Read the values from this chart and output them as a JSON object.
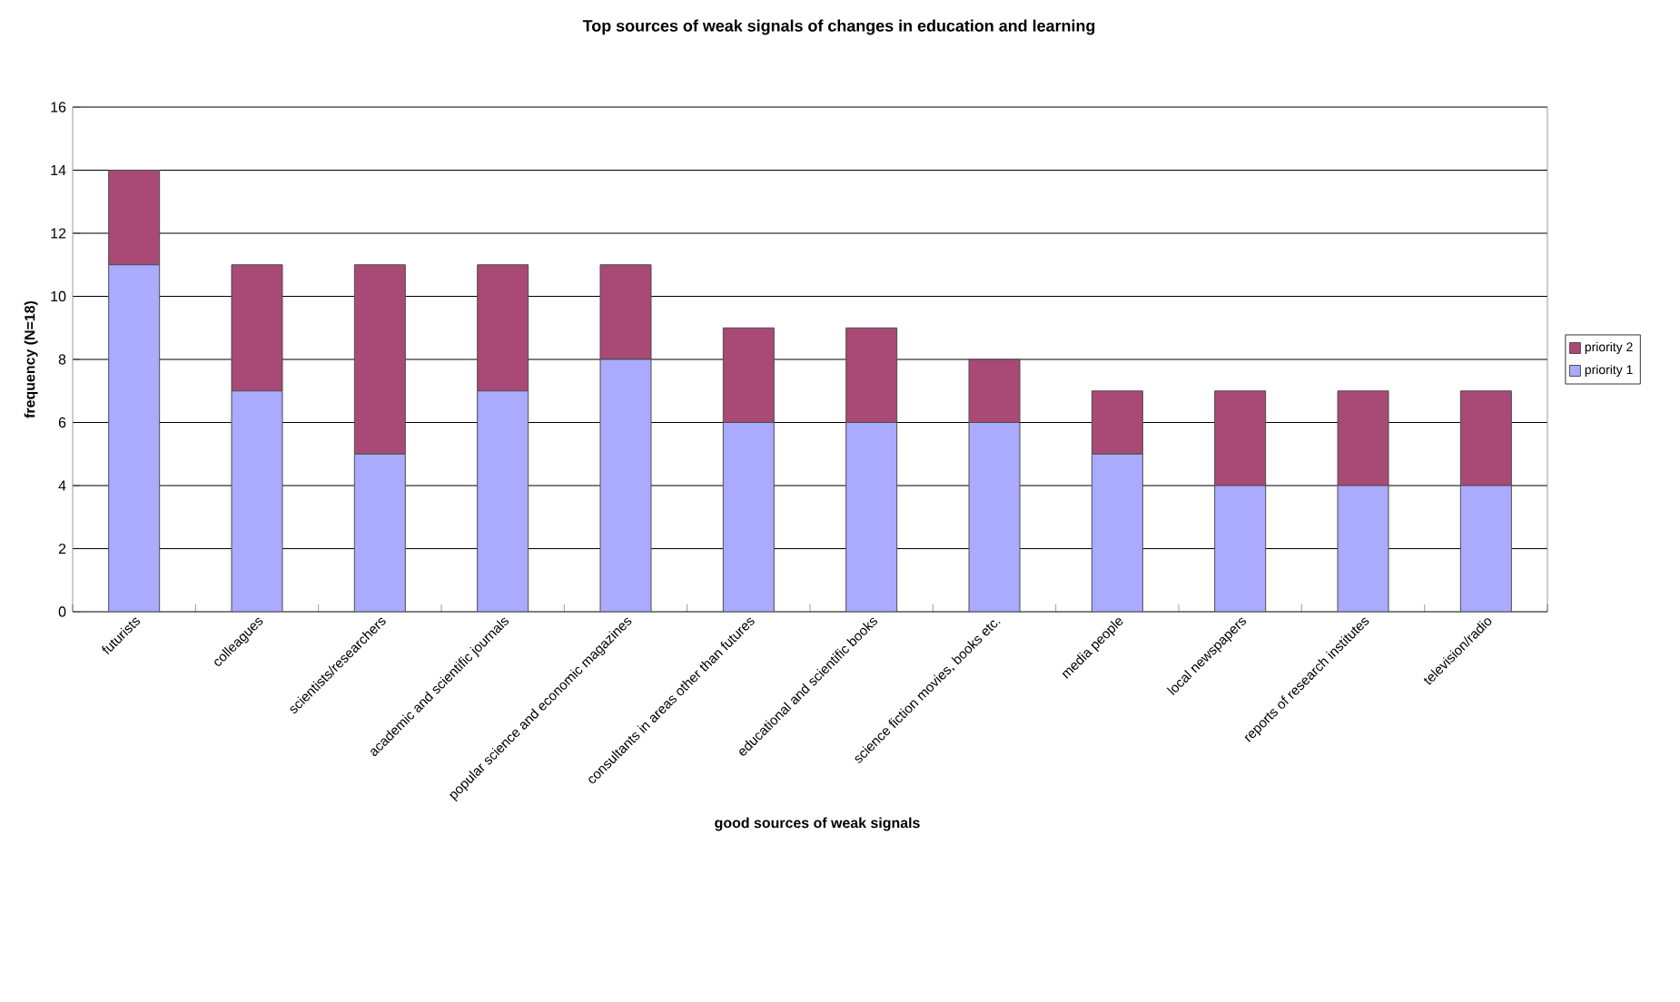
{
  "chart_data": {
    "type": "bar",
    "stacked": true,
    "title": "Top sources of weak signals of changes in education and learning",
    "xlabel": "good sources of weak signals",
    "ylabel": "frequency (N=18)",
    "categories": [
      "futurists",
      "colleagues",
      "scientists/researchers",
      "academic and scientific journals",
      "popular science and economic magazines",
      "consultants in areas other than futures",
      "educational and scientific books",
      "science fiction movies, books etc.",
      "media people",
      "local newspapers",
      "reports of research institutes",
      "television/radio"
    ],
    "series": [
      {
        "name": "priority 1",
        "color": "#aaaaff",
        "values": [
          11,
          7,
          5,
          7,
          8,
          6,
          6,
          6,
          5,
          4,
          4,
          4
        ]
      },
      {
        "name": "priority 2",
        "color": "#a94975",
        "values": [
          3,
          4,
          6,
          4,
          3,
          3,
          3,
          2,
          2,
          3,
          3,
          3
        ]
      }
    ],
    "ylim": [
      0,
      16
    ],
    "yticks": [
      0,
      2,
      4,
      6,
      8,
      10,
      12,
      14,
      16
    ],
    "grid": "y",
    "legend": "right"
  }
}
